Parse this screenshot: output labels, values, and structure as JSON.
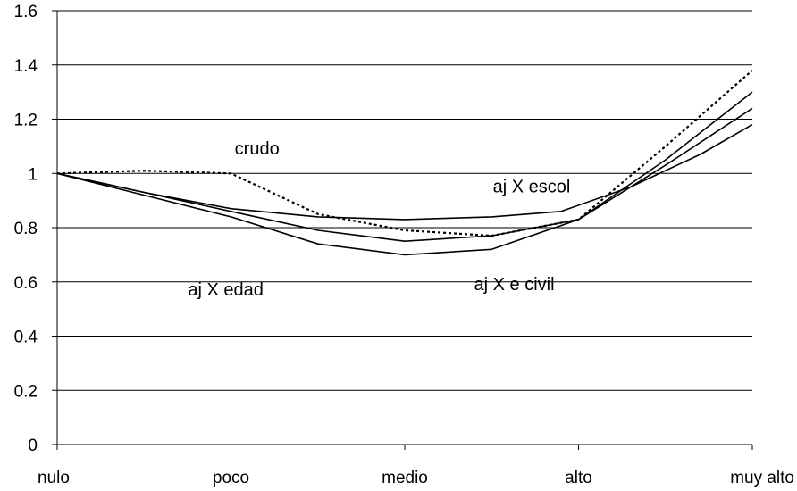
{
  "chart_data": {
    "type": "line",
    "categories": [
      "nulo",
      "poco",
      "medio",
      "alto",
      "muy alto"
    ],
    "ylim": [
      0,
      1.6
    ],
    "yticks": [
      "0",
      "0.2",
      "0.4",
      "0.6",
      "0.8",
      "1",
      "1.2",
      "1.4",
      "1.6"
    ],
    "grid": true,
    "series": [
      {
        "name": "crudo",
        "style": "dotted",
        "points": [
          [
            0,
            1.0
          ],
          [
            0.5,
            1.01
          ],
          [
            1,
            1.0
          ],
          [
            1.5,
            0.85
          ],
          [
            2,
            0.79
          ],
          [
            2.5,
            0.77
          ],
          [
            3,
            0.83
          ],
          [
            3.5,
            1.1
          ],
          [
            4,
            1.38
          ]
        ]
      },
      {
        "name": "aj X escol",
        "style": "solid",
        "points": [
          [
            0,
            1.0
          ],
          [
            0.5,
            0.93
          ],
          [
            1,
            0.87
          ],
          [
            1.5,
            0.84
          ],
          [
            2,
            0.83
          ],
          [
            2.5,
            0.84
          ],
          [
            2.9,
            0.86
          ],
          [
            3.3,
            0.95
          ],
          [
            3.7,
            1.07
          ],
          [
            4,
            1.18
          ]
        ]
      },
      {
        "name": "aj X e civil",
        "style": "solid",
        "points": [
          [
            0,
            1.0
          ],
          [
            0.5,
            0.93
          ],
          [
            1,
            0.86
          ],
          [
            1.5,
            0.79
          ],
          [
            2,
            0.75
          ],
          [
            2.5,
            0.77
          ],
          [
            3,
            0.83
          ],
          [
            3.5,
            1.03
          ],
          [
            4,
            1.24
          ]
        ]
      },
      {
        "name": "aj X edad",
        "style": "solid",
        "points": [
          [
            0,
            1.0
          ],
          [
            0.5,
            0.92
          ],
          [
            1,
            0.84
          ],
          [
            1.5,
            0.74
          ],
          [
            2,
            0.7
          ],
          [
            2.5,
            0.72
          ],
          [
            3,
            0.83
          ],
          [
            3.5,
            1.05
          ],
          [
            4,
            1.3
          ]
        ]
      }
    ],
    "annotations": [
      {
        "text": "crudo",
        "x": 1.15,
        "y": 1.07
      },
      {
        "text": "aj X escol",
        "x": 2.73,
        "y": 0.93
      },
      {
        "text": "aj X e civil",
        "x": 2.63,
        "y": 0.57
      },
      {
        "text": "aj X edad",
        "x": 0.97,
        "y": 0.55
      }
    ]
  }
}
